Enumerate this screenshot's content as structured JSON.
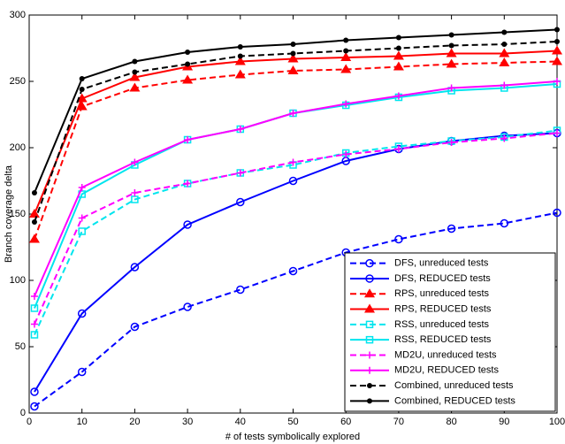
{
  "chart_data": {
    "type": "line",
    "xlabel": "# of tests symbolically explored",
    "ylabel": "Branch coverage delta",
    "x": [
      1,
      10,
      20,
      30,
      40,
      50,
      60,
      70,
      80,
      90,
      100
    ],
    "xlim": [
      0,
      100
    ],
    "xticks": [
      0,
      10,
      20,
      30,
      40,
      50,
      60,
      70,
      80,
      90,
      100
    ],
    "ylim": [
      0,
      300
    ],
    "yticks": [
      0,
      50,
      100,
      150,
      200,
      250,
      300
    ],
    "legend": "lower right",
    "series": [
      {
        "name": "DFS, unreduced tests",
        "color": "#0000ff",
        "dashed": true,
        "marker": "circle",
        "values": [
          5,
          31,
          65,
          80,
          93,
          107,
          121,
          131,
          139,
          143,
          151
        ]
      },
      {
        "name": "DFS, REDUCED tests",
        "color": "#0000ff",
        "dashed": false,
        "marker": "circle",
        "values": [
          16,
          75,
          110,
          142,
          159,
          175,
          190,
          199,
          205,
          209,
          211
        ]
      },
      {
        "name": "RPS, unreduced tests",
        "color": "#ff0000",
        "dashed": true,
        "marker": "triangle",
        "values": [
          131,
          231,
          245,
          251,
          255,
          258,
          259,
          261,
          263,
          264,
          265
        ]
      },
      {
        "name": "RPS, REDUCED tests",
        "color": "#ff0000",
        "dashed": false,
        "marker": "triangle",
        "values": [
          150,
          237,
          253,
          261,
          265,
          267,
          268,
          269,
          271,
          271,
          273
        ]
      },
      {
        "name": "RSS, unreduced tests",
        "color": "#00e5ee",
        "dashed": true,
        "marker": "square",
        "values": [
          59,
          137,
          161,
          173,
          181,
          187,
          196,
          201,
          205,
          208,
          213
        ]
      },
      {
        "name": "RSS, REDUCED tests",
        "color": "#00e5ee",
        "dashed": false,
        "marker": "square",
        "values": [
          79,
          165,
          187,
          206,
          214,
          226,
          232,
          238,
          243,
          245,
          248
        ]
      },
      {
        "name": "MD2U, unreduced tests",
        "color": "#ff00ff",
        "dashed": true,
        "marker": "plus",
        "values": [
          67,
          147,
          166,
          173,
          181,
          189,
          195,
          199,
          204,
          207,
          211
        ]
      },
      {
        "name": "MD2U, REDUCED tests",
        "color": "#ff00ff",
        "dashed": false,
        "marker": "plus",
        "values": [
          88,
          170,
          189,
          206,
          214,
          226,
          233,
          239,
          245,
          247,
          250
        ]
      },
      {
        "name": "Combined, unreduced tests",
        "color": "#000000",
        "dashed": true,
        "marker": "dot",
        "values": [
          144,
          244,
          257,
          263,
          269,
          271,
          273,
          275,
          277,
          278,
          280
        ]
      },
      {
        "name": "Combined, REDUCED tests",
        "color": "#000000",
        "dashed": false,
        "marker": "dot",
        "values": [
          166,
          252,
          265,
          272,
          276,
          278,
          281,
          283,
          285,
          287,
          289
        ]
      }
    ]
  }
}
